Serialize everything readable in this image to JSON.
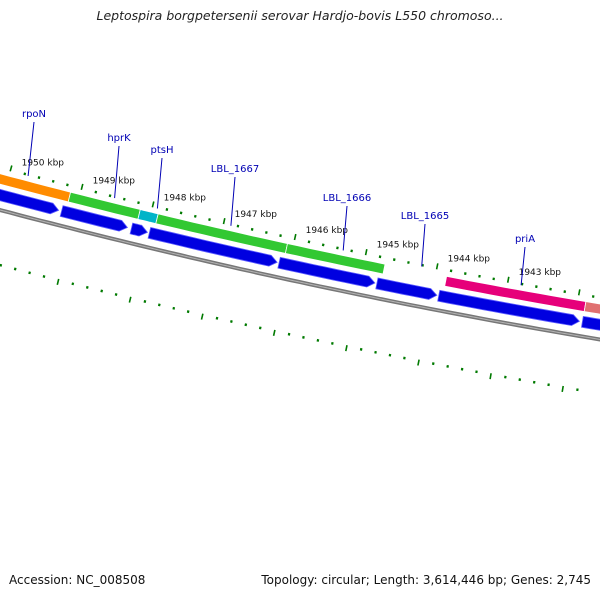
{
  "title": "Leptospira borgpetersenii serovar Hardjo-bovis L550 chromoso...",
  "footer": {
    "accession": "Accession: NC_008508",
    "stats": "Topology: circular; Length: 3,614,446 bp; Genes: 2,745"
  },
  "colors": {
    "backbone": "#777777",
    "cds": "#0000e0",
    "tick": "#007a00",
    "label": "#0000b4",
    "gene_orange": "#ff8c00",
    "gene_green": "#32c832",
    "gene_cyan": "#00b4c8",
    "gene_pink": "#e6007a",
    "gene_salmon": "#e07070"
  },
  "tick_labels": [
    {
      "kbp": 1950,
      "text": "1950 kbp"
    },
    {
      "kbp": 1949,
      "text": "1949 kbp"
    },
    {
      "kbp": 1948,
      "text": "1948 kbp"
    },
    {
      "kbp": 1947,
      "text": "1947 kbp"
    },
    {
      "kbp": 1946,
      "text": "1946 kbp"
    },
    {
      "kbp": 1945,
      "text": "1945 kbp"
    },
    {
      "kbp": 1944,
      "text": "1944 kbp"
    },
    {
      "kbp": 1943,
      "text": "1943 kbp"
    }
  ],
  "genes": [
    {
      "name": "rpoN",
      "color": "gene_orange"
    },
    {
      "name": "hprK",
      "color": "gene_green"
    },
    {
      "name": "ptsH",
      "color": "gene_cyan"
    },
    {
      "name": "LBL_1667",
      "color": "gene_green"
    },
    {
      "name": "LBL_1666",
      "color": "gene_green"
    },
    {
      "name": "LBL_1665",
      "color": "gene_green"
    },
    {
      "name": "priA",
      "color": "gene_pink"
    }
  ]
}
